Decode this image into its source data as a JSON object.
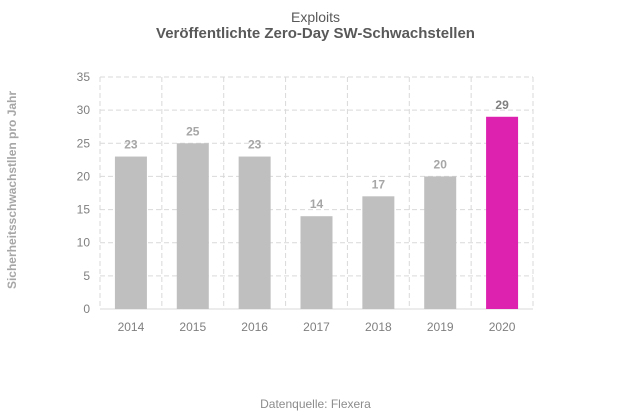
{
  "chart_data": {
    "type": "bar",
    "title_line1": "Exploits",
    "title": "Veröffentlichte Zero-Day SW-Schwachstellen",
    "ylabel": "Sicherheitsschwachstllen  pro Jahr",
    "xlabel": "",
    "categories": [
      "2014",
      "2015",
      "2016",
      "2017",
      "2018",
      "2019",
      "2020"
    ],
    "values": [
      23,
      25,
      23,
      14,
      17,
      20,
      29
    ],
    "ylim": [
      0,
      35
    ],
    "yticks": [
      0,
      5,
      10,
      15,
      20,
      25,
      30,
      35
    ],
    "grid": true,
    "colors": {
      "default_bar": "#bfbfbf",
      "highlight_bar": "#dd22b0",
      "default_label": "#a6a6a6",
      "highlight_label": "#7f7f7f"
    },
    "highlight_index": 6,
    "source": "Datenquelle:  Flexera"
  }
}
